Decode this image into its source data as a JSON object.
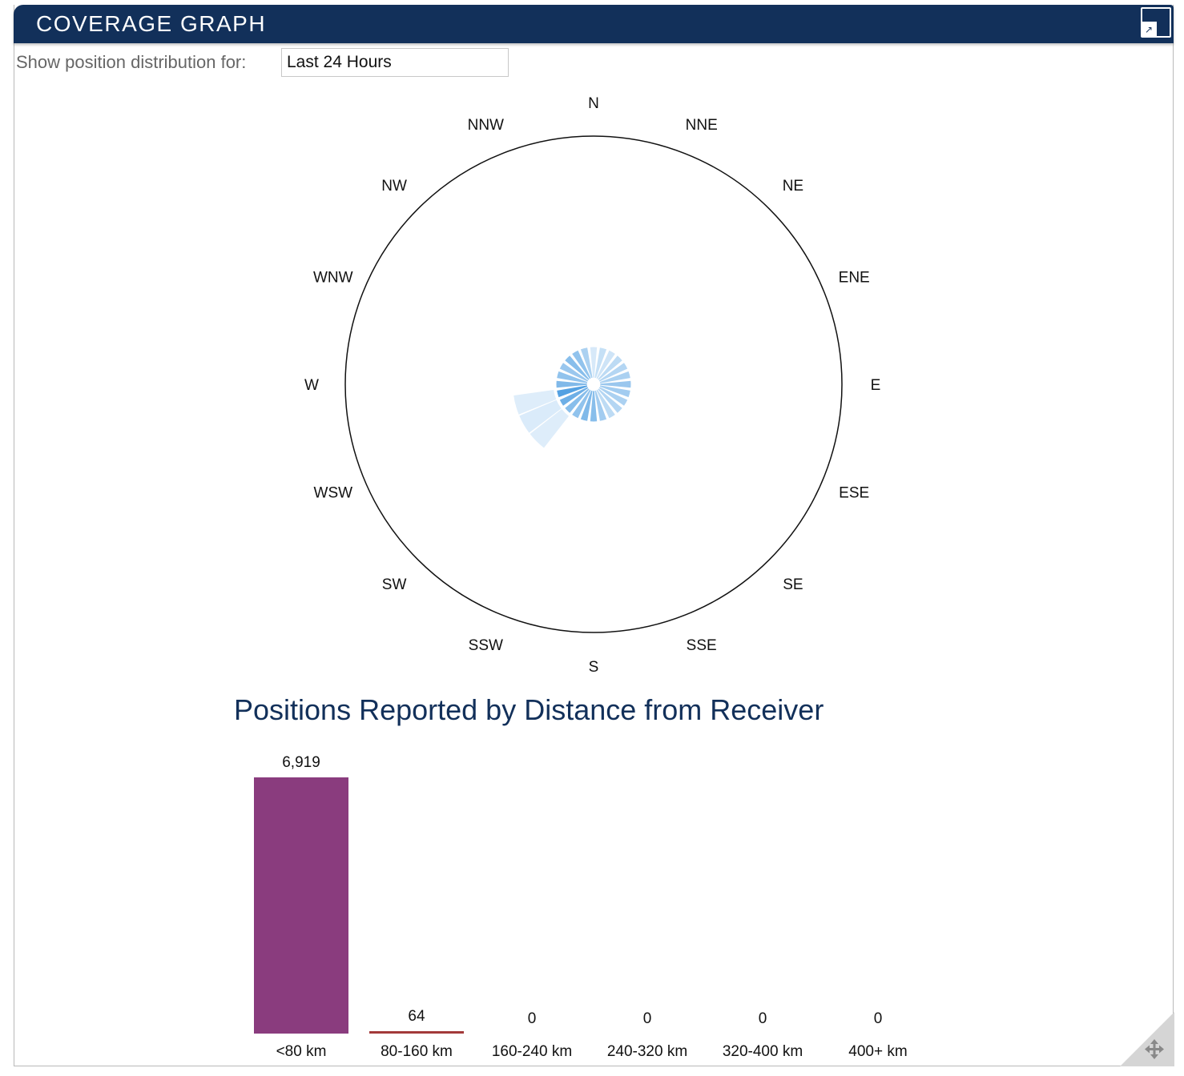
{
  "window": {
    "title": "COVERAGE GRAPH",
    "maximize_icon": "maximize-icon",
    "resize_icon": "move-resize-icon"
  },
  "filter": {
    "label": "Show position distribution for:",
    "selected": "Last 24 Hours"
  },
  "rose": {
    "directions": [
      "N",
      "NNE",
      "NE",
      "ENE",
      "E",
      "ESE",
      "SE",
      "SSE",
      "S",
      "SSW",
      "SW",
      "WSW",
      "W",
      "WNW",
      "NW",
      "NNW"
    ],
    "outer_ring_km": 400,
    "sectors": [
      {
        "deg": 0,
        "km": 60,
        "shade": 0.1
      },
      {
        "deg": 15,
        "km": 60,
        "shade": 0.2
      },
      {
        "deg": 30,
        "km": 60,
        "shade": 0.15
      },
      {
        "deg": 45,
        "km": 60,
        "shade": 0.25
      },
      {
        "deg": 60,
        "km": 60,
        "shade": 0.3
      },
      {
        "deg": 75,
        "km": 60,
        "shade": 0.35
      },
      {
        "deg": 90,
        "km": 60,
        "shade": 0.45
      },
      {
        "deg": 105,
        "km": 60,
        "shade": 0.4
      },
      {
        "deg": 120,
        "km": 60,
        "shade": 0.35
      },
      {
        "deg": 135,
        "km": 60,
        "shade": 0.3
      },
      {
        "deg": 150,
        "km": 60,
        "shade": 0.25
      },
      {
        "deg": 165,
        "km": 60,
        "shade": 0.4
      },
      {
        "deg": 180,
        "km": 60,
        "shade": 0.55
      },
      {
        "deg": 195,
        "km": 60,
        "shade": 0.6
      },
      {
        "deg": 210,
        "km": 60,
        "shade": 0.5
      },
      {
        "deg": 225,
        "km": 60,
        "shade": 0.55
      },
      {
        "deg": 240,
        "km": 60,
        "shade": 0.7
      },
      {
        "deg": 255,
        "km": 60,
        "shade": 0.85
      },
      {
        "deg": 270,
        "km": 60,
        "shade": 0.6
      },
      {
        "deg": 285,
        "km": 60,
        "shade": 0.5
      },
      {
        "deg": 300,
        "km": 60,
        "shade": 0.45
      },
      {
        "deg": 315,
        "km": 60,
        "shade": 0.55
      },
      {
        "deg": 330,
        "km": 60,
        "shade": 0.5
      },
      {
        "deg": 345,
        "km": 60,
        "shade": 0.35
      }
    ],
    "outer_sectors": [
      {
        "deg": 255,
        "inner_km": 65,
        "outer_km": 130,
        "shade": 0.06
      },
      {
        "deg": 240,
        "inner_km": 65,
        "outer_km": 130,
        "shade": 0.08
      },
      {
        "deg": 225,
        "inner_km": 65,
        "outer_km": 130,
        "shade": 0.06
      }
    ]
  },
  "chart_data": {
    "type": "bar",
    "title": "Positions Reported by Distance from Receiver",
    "categories": [
      "<80 km",
      "80-160 km",
      "160-240 km",
      "240-320 km",
      "320-400 km",
      "400+ km"
    ],
    "values": [
      6919,
      64,
      0,
      0,
      0,
      0
    ],
    "value_labels": [
      "6,919",
      "64",
      "0",
      "0",
      "0",
      "0"
    ],
    "colors": [
      "#8a3c7e",
      "#a33a3a",
      "#8a3c7e",
      "#8a3c7e",
      "#8a3c7e",
      "#8a3c7e"
    ],
    "ylim": [
      0,
      6919
    ],
    "grid": false,
    "legend": "none"
  }
}
